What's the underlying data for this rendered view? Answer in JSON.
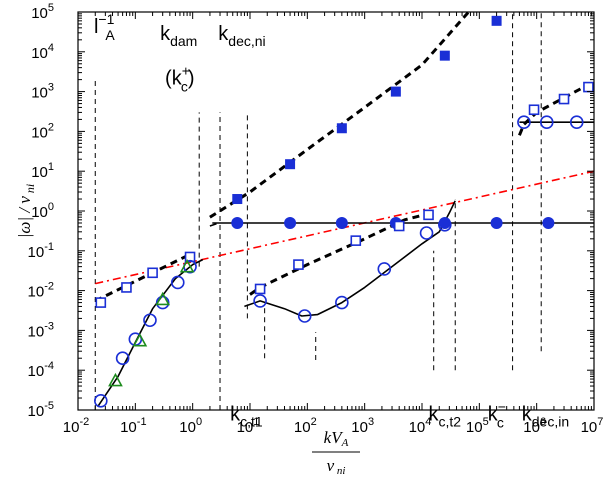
{
  "chart_data": {
    "type": "line",
    "xscale": "log",
    "yscale": "log",
    "xlim": [
      0.01,
      10000000
    ],
    "ylim": [
      1e-05,
      100000
    ],
    "xticks": [
      {
        "v": 0.01,
        "label": "10",
        "exp": "-2"
      },
      {
        "v": 0.1,
        "label": "10",
        "exp": "-1"
      },
      {
        "v": 1,
        "label": "10",
        "exp": "0"
      },
      {
        "v": 10,
        "label": "10",
        "exp": "1"
      },
      {
        "v": 100,
        "label": "10",
        "exp": "2"
      },
      {
        "v": 1000,
        "label": "10",
        "exp": "3"
      },
      {
        "v": 10000,
        "label": "10",
        "exp": "4"
      },
      {
        "v": 100000,
        "label": "10",
        "exp": "5"
      },
      {
        "v": 1000000,
        "label": "10",
        "exp": "6"
      },
      {
        "v": 10000000,
        "label": "10",
        "exp": "7"
      }
    ],
    "yticks": [
      {
        "v": 1e-05,
        "label": "10",
        "exp": "-5"
      },
      {
        "v": 0.0001,
        "label": "10",
        "exp": "-4"
      },
      {
        "v": 0.001,
        "label": "10",
        "exp": "-3"
      },
      {
        "v": 0.01,
        "label": "10",
        "exp": "-2"
      },
      {
        "v": 0.1,
        "label": "10",
        "exp": "-1"
      },
      {
        "v": 1,
        "label": "10",
        "exp": "0"
      },
      {
        "v": 10,
        "label": "10",
        "exp": "1"
      },
      {
        "v": 100,
        "label": "10",
        "exp": "2"
      },
      {
        "v": 1000,
        "label": "10",
        "exp": "3"
      },
      {
        "v": 10000,
        "label": "10",
        "exp": "4"
      },
      {
        "v": 100000,
        "label": "10",
        "exp": "5"
      }
    ],
    "ylabel_parts": [
      "|",
      "ω",
      "|  /  ν",
      " ni"
    ],
    "xlabel_parts": {
      "num": "kV",
      "num_sub": "A",
      "den": "ν",
      "den_sub": " ni"
    },
    "lines": [
      {
        "style": "dashdot-red",
        "points": [
          [
            0.02,
            0.015
          ],
          [
            10000000,
            10
          ]
        ]
      },
      {
        "style": "dashed-bold",
        "points": [
          [
            0.02,
            0.0055
          ],
          [
            0.8,
            0.075
          ]
        ]
      },
      {
        "style": "solid",
        "points": [
          [
            0.022,
            1.2e-05
          ],
          [
            0.05,
            7e-05
          ],
          [
            0.1,
            0.0005
          ],
          [
            0.2,
            0.0035
          ],
          [
            0.5,
            0.02
          ],
          [
            1.0,
            0.045
          ],
          [
            1.5,
            0.06
          ]
        ]
      },
      {
        "style": "dashed-bold",
        "points": [
          [
            2.0,
            0.7
          ],
          [
            10,
            3
          ],
          [
            100,
            35
          ],
          [
            1000,
            400
          ],
          [
            10000,
            4700
          ],
          [
            65000,
            100000
          ]
        ]
      },
      {
        "style": "solid",
        "points": [
          [
            2.2,
            0.5
          ],
          [
            25000,
            0.5
          ]
        ]
      },
      {
        "style": "solid",
        "points": [
          [
            2.0,
            0.42
          ],
          [
            2.6,
            0.48
          ]
        ]
      },
      {
        "style": "dashed-bold",
        "points": [
          [
            10,
            0.008
          ],
          [
            15,
            0.012
          ],
          [
            100,
            0.045
          ],
          [
            1000,
            0.2
          ],
          [
            5000,
            0.6
          ],
          [
            15000,
            0.9
          ]
        ]
      },
      {
        "style": "solid",
        "points": [
          [
            8,
            0.004
          ],
          [
            15,
            0.0055
          ],
          [
            40,
            0.0035
          ],
          [
            80,
            0.0023
          ],
          [
            150,
            0.0025
          ],
          [
            400,
            0.005
          ],
          [
            1000,
            0.012
          ],
          [
            3000,
            0.04
          ],
          [
            10000,
            0.15
          ],
          [
            20000,
            0.3
          ],
          [
            30000,
            0.9
          ],
          [
            38000,
            1.8
          ]
        ]
      },
      {
        "style": "solid",
        "points": [
          [
            30000,
            0.5
          ],
          [
            10000000,
            0.5
          ]
        ]
      },
      {
        "style": "dashed-bold",
        "points": [
          [
            500000,
            80
          ],
          [
            600000,
            150
          ],
          [
            1000000,
            300
          ],
          [
            3000000,
            700
          ],
          [
            8000000,
            1500
          ]
        ]
      },
      {
        "style": "solid",
        "points": [
          [
            500000,
            170
          ],
          [
            10000000,
            170
          ]
        ]
      }
    ],
    "markers": [
      {
        "shape": "square-filled",
        "color": "#1a2fd6",
        "points": [
          [
            6,
            2
          ],
          [
            50,
            15
          ],
          [
            400,
            120
          ],
          [
            3500,
            1000
          ],
          [
            25000,
            8000
          ],
          [
            200000,
            60000
          ]
        ]
      },
      {
        "shape": "circle-filled",
        "color": "#1a2fd6",
        "points": [
          [
            6,
            0.5
          ],
          [
            50,
            0.5
          ],
          [
            400,
            0.5
          ],
          [
            3500,
            0.5
          ],
          [
            25000,
            0.5
          ],
          [
            200000,
            0.5
          ],
          [
            1600000,
            0.5
          ]
        ]
      },
      {
        "shape": "square-open",
        "color": "#1a2fd6",
        "points": [
          [
            0.025,
            0.005
          ],
          [
            0.07,
            0.012
          ],
          [
            0.2,
            0.028
          ],
          [
            0.9,
            0.07
          ],
          [
            15,
            0.011
          ],
          [
            70,
            0.045
          ],
          [
            700,
            0.18
          ],
          [
            4000,
            0.42
          ],
          [
            13000,
            0.8
          ],
          [
            900000,
            350
          ],
          [
            3000000,
            650
          ],
          [
            8000000,
            1300
          ]
        ]
      },
      {
        "shape": "circle-open",
        "color": "#1a2fd6",
        "points": [
          [
            0.025,
            1.7e-05
          ],
          [
            0.06,
            0.0002
          ],
          [
            0.1,
            0.0006
          ],
          [
            0.18,
            0.0018
          ],
          [
            0.3,
            0.005
          ],
          [
            0.55,
            0.016
          ],
          [
            0.9,
            0.04
          ],
          [
            15,
            0.0055
          ],
          [
            90,
            0.0023
          ],
          [
            400,
            0.005
          ],
          [
            2200,
            0.035
          ],
          [
            12000,
            0.28
          ],
          [
            25000,
            0.45
          ],
          [
            600000,
            170
          ],
          [
            1500000,
            170
          ],
          [
            5000000,
            170
          ]
        ]
      },
      {
        "shape": "triangle-open",
        "color": "#1e8c1e",
        "points": [
          [
            0.045,
            5.5e-05
          ],
          [
            0.12,
            0.00055
          ],
          [
            0.3,
            0.006
          ],
          [
            0.8,
            0.04
          ]
        ]
      }
    ],
    "vlines": [
      {
        "x": 0.02,
        "y0": 1e-05,
        "y1": 2000
      },
      {
        "x": 1.3,
        "y0": 0.04,
        "y1": 300
      },
      {
        "x": 3.0,
        "y0": 1e-05,
        "y1": 300
      },
      {
        "x": 9,
        "y0": 0.002,
        "y1": 300
      },
      {
        "x": 18,
        "y0": 0.0002,
        "y1": 0.004
      },
      {
        "x": 140,
        "y0": 0.00018,
        "y1": 0.0009
      },
      {
        "x": 16000,
        "y0": 0.0001,
        "y1": 0.1
      },
      {
        "x": 38000,
        "y0": 0.0001,
        "y1": 2
      },
      {
        "x": 380000,
        "y0": 0.0001,
        "y1": 100000
      },
      {
        "x": 1200000,
        "y0": 0.0003,
        "y1": 100000
      }
    ],
    "annotations": [
      {
        "name": "label-l-a-inverse",
        "text": "l",
        "sup": "−1",
        "sub": "A",
        "x": 0.019,
        "y": 30000,
        "anchor": "start"
      },
      {
        "name": "label-k-dam",
        "text": "k",
        "sub": "dam",
        "x": 0.27,
        "y": 20000,
        "anchor": "start"
      },
      {
        "name": "label-k-c-plus",
        "text": "(k",
        "sup": "+",
        "sub": "c",
        "tail": ")",
        "x": 0.33,
        "y": 1500,
        "anchor": "start"
      },
      {
        "name": "label-k-dec-ni",
        "text": "k",
        "sub": "dec,ni",
        "x": 2.8,
        "y": 20000,
        "anchor": "start"
      },
      {
        "name": "label-k-c-t1",
        "text": "k",
        "sub": "c,t1",
        "x": 4.5,
        "y": 5.5e-06,
        "anchor": "start"
      },
      {
        "name": "label-k-c-t2",
        "text": "k",
        "sub": "c,t2",
        "x": 13000,
        "y": 5.5e-06,
        "anchor": "start"
      },
      {
        "name": "label-k-c-minus",
        "text": "k",
        "sup": "−",
        "sub": "c",
        "x": 140000,
        "y": 5.5e-06,
        "anchor": "start"
      },
      {
        "name": "label-k-dec-in",
        "text": "k",
        "sub": "dec,in",
        "x": 550000,
        "y": 5.5e-06,
        "anchor": "start"
      }
    ]
  }
}
